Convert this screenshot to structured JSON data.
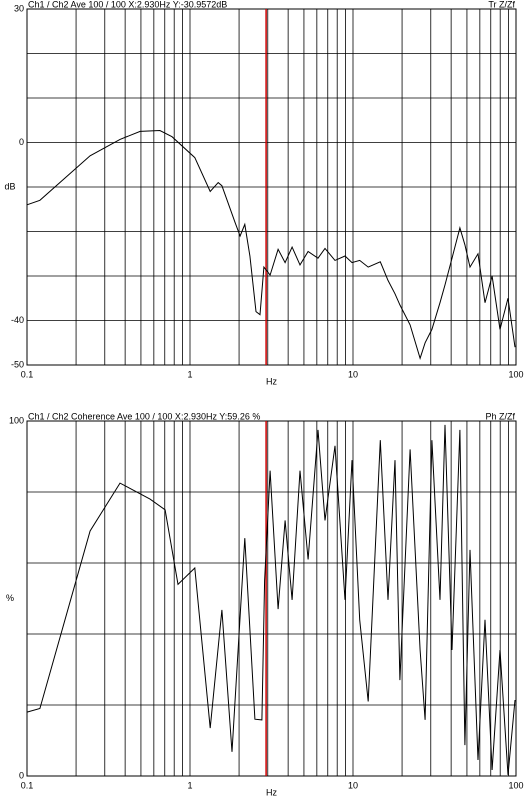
{
  "chart_data": [
    {
      "type": "line",
      "header": "Ch1 / Ch2  Ave 100 / 100  X:2.930Hz  Y:-30.9572dB",
      "header_right": "Tr Z/Zf",
      "ylabel": "dB",
      "xlabel": "Hz",
      "xscale": "log",
      "grid": true,
      "xlim": [
        0.1,
        100
      ],
      "ylim": [
        -50,
        30
      ],
      "xticks": [
        0.1,
        {
          "value": 0.2,
          "label": null
        },
        {
          "value": 0.3,
          "label": null
        },
        {
          "value": 0.4,
          "label": null
        },
        {
          "value": 0.5,
          "label": null
        },
        {
          "value": 0.6,
          "label": null
        },
        {
          "value": 0.7,
          "label": null
        },
        {
          "value": 0.8,
          "label": null
        },
        {
          "value": 0.9,
          "label": null
        },
        1,
        {
          "value": 2,
          "label": null
        },
        {
          "value": 3,
          "label": null
        },
        {
          "value": 4,
          "label": null
        },
        {
          "value": 5,
          "label": null
        },
        {
          "value": 6,
          "label": null
        },
        {
          "value": 7,
          "label": null
        },
        {
          "value": 8,
          "label": null
        },
        {
          "value": 9,
          "label": null
        },
        10,
        {
          "value": 20,
          "label": null
        },
        {
          "value": 30,
          "label": null
        },
        {
          "value": 40,
          "label": null
        },
        {
          "value": 50,
          "label": null
        },
        {
          "value": 60,
          "label": null
        },
        {
          "value": 70,
          "label": null
        },
        {
          "value": 80,
          "label": null
        },
        {
          "value": 90,
          "label": null
        },
        100
      ],
      "yticks": [
        30,
        {
          "value": 20,
          "label": null
        },
        {
          "value": 10,
          "label": null
        },
        0,
        {
          "value": -10,
          "label": null
        },
        {
          "value": -20,
          "label": null
        },
        {
          "value": -30,
          "label": null
        },
        -40,
        -50
      ],
      "cursor": {
        "x": 2.93,
        "color": "#cc0000"
      },
      "color": "#000000",
      "x": [
        0.1,
        0.12,
        0.244,
        0.372,
        0.494,
        0.654,
        0.776,
        1.07,
        1.33,
        1.49,
        1.57,
        1.89,
        2.03,
        2.17,
        2.33,
        2.54,
        2.69,
        2.84,
        3.1,
        3.47,
        3.83,
        4.23,
        4.73,
        5.3,
        6.1,
        6.73,
        7.76,
        8.93,
        9.86,
        11,
        12.4,
        14.7,
        16.4,
        18.1,
        19.4,
        22.4,
        25.8,
        27.7,
        30.5,
        34.2,
        36.7,
        40.5,
        45.3,
        48.6,
        52.2,
        58.5,
        64.5,
        71.3,
        79.8,
        89.3,
        98.6
      ],
      "values": [
        -14,
        -13,
        -3,
        0.7,
        2.5,
        2.7,
        1.3,
        -3.4,
        -11,
        -9,
        -9.7,
        -18,
        -21,
        -18.4,
        -25.5,
        -38,
        -38.7,
        -28,
        -29.8,
        -24,
        -27,
        -23.5,
        -27.5,
        -24.5,
        -26,
        -23.8,
        -26.5,
        -25.5,
        -27,
        -26.5,
        -28,
        -26.8,
        -31,
        -34,
        -36.5,
        -41,
        -48.5,
        -45,
        -42,
        -36,
        -32,
        -26,
        -19.2,
        -23,
        -28,
        -25,
        -36,
        -30,
        -42,
        -35,
        -46
      ]
    },
    {
      "type": "line",
      "header": "Ch1 / Ch2  Coherence Ave 100 / 100  X:2.930Hz  Y:59.26 %",
      "header_right": "Ph Z/Zf",
      "ylabel": "%",
      "xlabel": "Hz",
      "xscale": "log",
      "grid": true,
      "xlim": [
        0.1,
        100
      ],
      "ylim": [
        0,
        100
      ],
      "xticks": [
        0.1,
        {
          "value": 0.2,
          "label": null
        },
        {
          "value": 0.3,
          "label": null
        },
        {
          "value": 0.4,
          "label": null
        },
        {
          "value": 0.5,
          "label": null
        },
        {
          "value": 0.6,
          "label": null
        },
        {
          "value": 0.7,
          "label": null
        },
        {
          "value": 0.8,
          "label": null
        },
        {
          "value": 0.9,
          "label": null
        },
        1,
        {
          "value": 2,
          "label": null
        },
        {
          "value": 3,
          "label": null
        },
        {
          "value": 4,
          "label": null
        },
        {
          "value": 5,
          "label": null
        },
        {
          "value": 6,
          "label": null
        },
        {
          "value": 7,
          "label": null
        },
        {
          "value": 8,
          "label": null
        },
        {
          "value": 9,
          "label": null
        },
        10,
        {
          "value": 20,
          "label": null
        },
        {
          "value": 30,
          "label": null
        },
        {
          "value": 40,
          "label": null
        },
        {
          "value": 50,
          "label": null
        },
        {
          "value": 60,
          "label": null
        },
        {
          "value": 70,
          "label": null
        },
        {
          "value": 80,
          "label": null
        },
        {
          "value": 90,
          "label": null
        },
        100
      ],
      "yticks": [
        100,
        {
          "value": 80,
          "label": null
        },
        {
          "value": 60,
          "label": null
        },
        {
          "value": 40,
          "label": null
        },
        {
          "value": 20,
          "label": null
        },
        0
      ],
      "cursor": {
        "x": 2.93,
        "color": "#cc0000"
      },
      "color": "#000000",
      "x": [
        0.1,
        0.12,
        0.244,
        0.372,
        0.568,
        0.703,
        0.844,
        1.07,
        1.33,
        1.57,
        1.81,
        2.17,
        2.5,
        2.76,
        2.87,
        3.1,
        3.47,
        3.83,
        4.23,
        4.73,
        5.3,
        6.1,
        6.73,
        7.76,
        8.93,
        9.86,
        11,
        12.4,
        14.7,
        16.4,
        18.1,
        19.4,
        22.4,
        25.8,
        27.7,
        30.5,
        34.2,
        36.7,
        40.5,
        45.3,
        48.6,
        52.2,
        58.5,
        64.5,
        71.3,
        79.8,
        89.3,
        98.6
      ],
      "values": [
        18,
        19,
        69,
        82.5,
        78,
        75,
        54,
        58.6,
        13.5,
        46.8,
        6.8,
        67,
        16,
        15.8,
        55,
        86,
        47,
        72,
        49.6,
        86,
        61,
        97.5,
        72,
        93,
        49.6,
        89,
        44,
        21,
        94.6,
        49.6,
        89,
        27,
        92,
        35.5,
        15.8,
        94.6,
        49.6,
        98.9,
        35.5,
        97.5,
        8.7,
        63.7,
        4.5,
        44,
        1.7,
        35.5,
        0.3,
        21.4
      ]
    }
  ]
}
